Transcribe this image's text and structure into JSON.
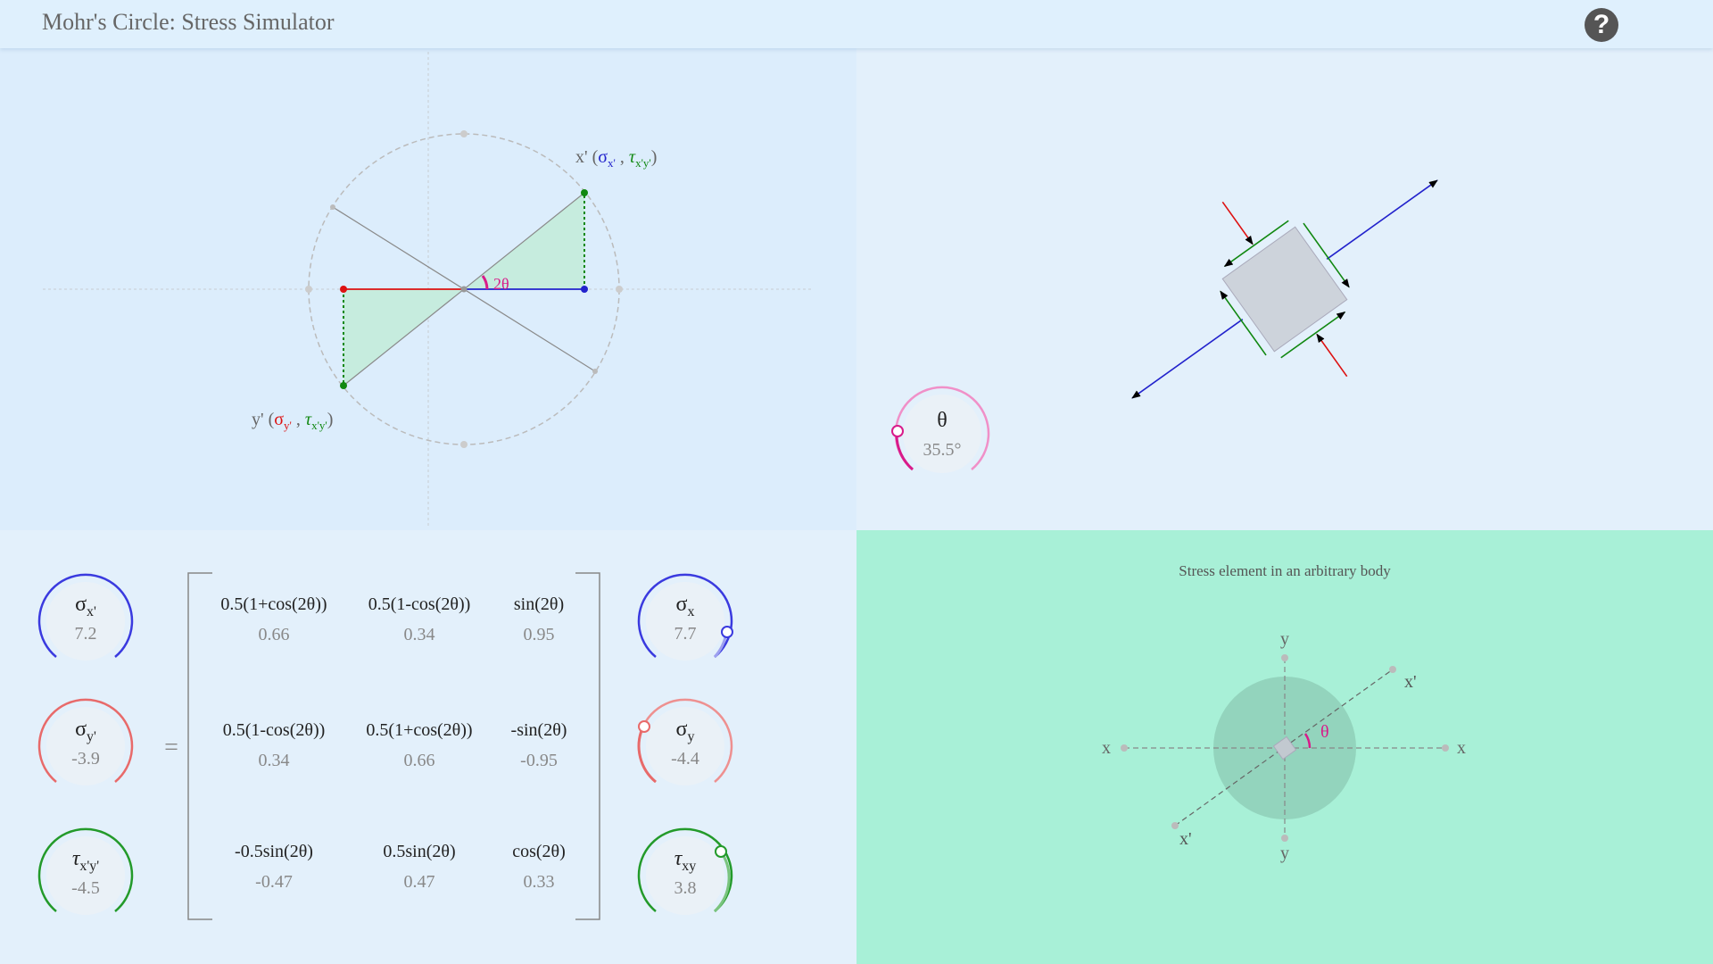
{
  "app": {
    "title": "Mohr's Circle: Stress Simulator",
    "help_label": "?"
  },
  "mohr": {
    "x_point_label": {
      "prefix": "x' (",
      "sigma": "σ",
      "sigma_sub": "x'",
      "sep": " , ",
      "tau": "τ",
      "tau_sub": "x'y'",
      "suffix": ")"
    },
    "y_point_label": {
      "prefix": "y' (",
      "sigma": "σ",
      "sigma_sub": "y'",
      "sep": " , ",
      "tau": "τ",
      "tau_sub": "x'y'",
      "suffix": ")"
    },
    "angle_label": "2θ"
  },
  "theta_dial": {
    "symbol": "θ",
    "value": "35.5°"
  },
  "outputs": [
    {
      "symbol": "σ",
      "sub": "x'",
      "value": "7.2",
      "color": "#3a3adf"
    },
    {
      "symbol": "σ",
      "sub": "y'",
      "value": "-3.9",
      "color": "#e86a6a"
    },
    {
      "symbol": "τ",
      "sub": "x'y'",
      "value": "-4.5",
      "color": "#239a2a"
    }
  ],
  "equals": "=",
  "matrix": [
    [
      {
        "formula": "0.5(1+cos(2θ))",
        "value": "0.66"
      },
      {
        "formula": "0.5(1-cos(2θ))",
        "value": "0.34"
      },
      {
        "formula": "sin(2θ)",
        "value": "0.95"
      }
    ],
    [
      {
        "formula": "0.5(1-cos(2θ))",
        "value": "0.34"
      },
      {
        "formula": "0.5(1+cos(2θ))",
        "value": "0.66"
      },
      {
        "formula": "-sin(2θ)",
        "value": "-0.95"
      }
    ],
    [
      {
        "formula": "-0.5sin(2θ)",
        "value": "-0.47"
      },
      {
        "formula": "0.5sin(2θ)",
        "value": "0.47"
      },
      {
        "formula": "cos(2θ)",
        "value": "0.33"
      }
    ]
  ],
  "inputs": [
    {
      "symbol": "σ",
      "sub": "x",
      "value": "7.7",
      "color": "#3a3adf"
    },
    {
      "symbol": "σ",
      "sub": "y",
      "value": "-4.4",
      "color": "#ee9090"
    },
    {
      "symbol": "τ",
      "sub": "xy",
      "value": "3.8",
      "color": "#239a2a"
    }
  ],
  "body": {
    "title": "Stress element in an arbitrary body",
    "axis_x": "x",
    "axis_y": "y",
    "axis_x_prime": "x'",
    "angle_label": "θ"
  },
  "colors": {
    "sigma_x": "#2222cc",
    "sigma_y": "#dd1111",
    "tau": "#118811",
    "theta": "#d81b8a",
    "wedge_fill": "#c6ecde",
    "element_fill": "#cdd3db"
  }
}
